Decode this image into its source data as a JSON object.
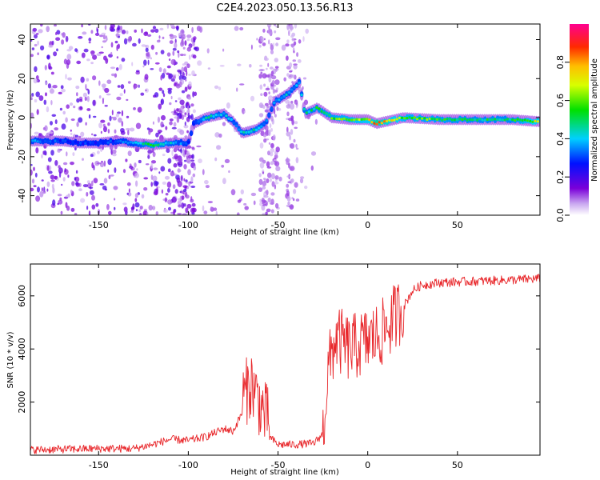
{
  "figure": {
    "title": "C2E4.2023.050.13.56.R13"
  },
  "chart_data": [
    {
      "type": "heatmap",
      "title": "C2E4.2023.050.13.56.R13",
      "xlabel": "Height of straight line (km)",
      "ylabel": "Frequency (Hz)",
      "xlim": [
        -188,
        96
      ],
      "ylim": [
        -50,
        48
      ],
      "x_ticks": [
        -150,
        -100,
        -50,
        0,
        50
      ],
      "y_ticks": [
        -40,
        -20,
        0,
        20,
        40
      ],
      "grid": false,
      "colorbar": {
        "label": "Normalized spectral amplitude",
        "range": [
          0,
          1
        ],
        "ticks": [
          0.0,
          0.2,
          0.4,
          0.6,
          0.8
        ],
        "colormap": "rainbow (purple-blue-cyan-green-yellow-orange-red-magenta)"
      },
      "ridge": [
        {
          "x": -185,
          "y": -12,
          "a": 0.35
        },
        {
          "x": -170,
          "y": -12,
          "a": 0.3
        },
        {
          "x": -160,
          "y": -13,
          "a": 0.28
        },
        {
          "x": -150,
          "y": -13,
          "a": 0.28
        },
        {
          "x": -140,
          "y": -12,
          "a": 0.3
        },
        {
          "x": -130,
          "y": -13,
          "a": 0.35
        },
        {
          "x": -120,
          "y": -14,
          "a": 0.55
        },
        {
          "x": -110,
          "y": -13,
          "a": 0.4
        },
        {
          "x": -100,
          "y": -13,
          "a": 0.3
        },
        {
          "x": -97,
          "y": -3,
          "a": 0.3
        },
        {
          "x": -90,
          "y": 0,
          "a": 0.45
        },
        {
          "x": -80,
          "y": 2,
          "a": 0.4
        },
        {
          "x": -75,
          "y": -2,
          "a": 0.35
        },
        {
          "x": -70,
          "y": -8,
          "a": 0.4
        },
        {
          "x": -62,
          "y": -6,
          "a": 0.45
        },
        {
          "x": -57,
          "y": -3,
          "a": 0.35
        },
        {
          "x": -52,
          "y": 8,
          "a": 0.35
        },
        {
          "x": -45,
          "y": 12,
          "a": 0.4
        },
        {
          "x": -38,
          "y": 18,
          "a": 0.35
        },
        {
          "x": -35,
          "y": 2,
          "a": 0.45
        },
        {
          "x": -28,
          "y": 5,
          "a": 0.5
        },
        {
          "x": -20,
          "y": 0,
          "a": 0.55
        },
        {
          "x": -10,
          "y": -1,
          "a": 0.6
        },
        {
          "x": 0,
          "y": -1,
          "a": 0.65
        },
        {
          "x": 5,
          "y": -3,
          "a": 0.85
        },
        {
          "x": 10,
          "y": -2,
          "a": 0.75
        },
        {
          "x": 20,
          "y": 0,
          "a": 0.6
        },
        {
          "x": 40,
          "y": -1,
          "a": 0.55
        },
        {
          "x": 60,
          "y": -1,
          "a": 0.5
        },
        {
          "x": 80,
          "y": -1,
          "a": 0.5
        },
        {
          "x": 95,
          "y": -2,
          "a": 0.7
        }
      ]
    },
    {
      "type": "line",
      "xlabel": "Height of straight line (km)",
      "ylabel": "SNR (10 * v/v)",
      "xlim": [
        -188,
        96
      ],
      "ylim": [
        0,
        7200
      ],
      "x_ticks": [
        -150,
        -100,
        -50,
        0,
        50
      ],
      "y_ticks": [
        2000,
        4000,
        6000
      ],
      "grid": false,
      "color": "#e8262a",
      "envelope": [
        {
          "x": -188,
          "y": 200
        },
        {
          "x": -150,
          "y": 250
        },
        {
          "x": -130,
          "y": 250
        },
        {
          "x": -120,
          "y": 400
        },
        {
          "x": -110,
          "y": 600
        },
        {
          "x": -100,
          "y": 550
        },
        {
          "x": -90,
          "y": 700
        },
        {
          "x": -80,
          "y": 1000
        },
        {
          "x": -75,
          "y": 900
        },
        {
          "x": -70,
          "y": 1600
        },
        {
          "x": -65,
          "y": 2200
        },
        {
          "x": -60,
          "y": 1400
        },
        {
          "x": -55,
          "y": 700
        },
        {
          "x": -50,
          "y": 400
        },
        {
          "x": -40,
          "y": 400
        },
        {
          "x": -30,
          "y": 450
        },
        {
          "x": -25,
          "y": 800
        },
        {
          "x": -22,
          "y": 3200
        },
        {
          "x": -18,
          "y": 4400
        },
        {
          "x": -10,
          "y": 4000
        },
        {
          "x": 0,
          "y": 4300
        },
        {
          "x": 8,
          "y": 4600
        },
        {
          "x": 15,
          "y": 5200
        },
        {
          "x": 20,
          "y": 5600
        },
        {
          "x": 25,
          "y": 6200
        },
        {
          "x": 30,
          "y": 6400
        },
        {
          "x": 40,
          "y": 6500
        },
        {
          "x": 60,
          "y": 6550
        },
        {
          "x": 80,
          "y": 6600
        },
        {
          "x": 96,
          "y": 6650
        }
      ]
    }
  ]
}
